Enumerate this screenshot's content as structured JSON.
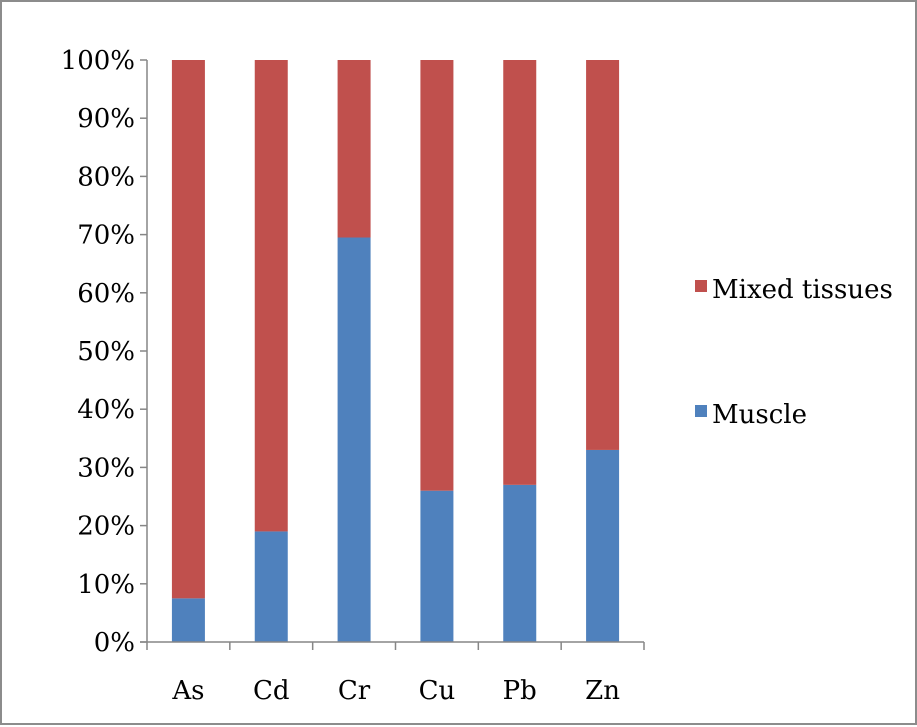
{
  "chart_data": {
    "type": "bar",
    "stacked": true,
    "percent_scale": true,
    "categories": [
      "As",
      "Cd",
      "Cr",
      "Cu",
      "Pb",
      "Zn"
    ],
    "series": [
      {
        "name": "Muscle",
        "color": "#4f81bd",
        "values": [
          7.5,
          19,
          69.5,
          26,
          27,
          33
        ]
      },
      {
        "name": "Mixed tissues",
        "color": "#c0504d",
        "values": [
          92.5,
          81,
          30.5,
          74,
          73,
          67
        ]
      }
    ],
    "yticks": [
      "0%",
      "10%",
      "20%",
      "30%",
      "40%",
      "50%",
      "60%",
      "70%",
      "80%",
      "90%",
      "100%"
    ],
    "ylim": [
      0,
      100
    ],
    "legend_order": [
      "Mixed tissues",
      "Muscle"
    ],
    "legend_position": "right",
    "grid": false,
    "title": "",
    "xlabel": "",
    "ylabel": ""
  }
}
